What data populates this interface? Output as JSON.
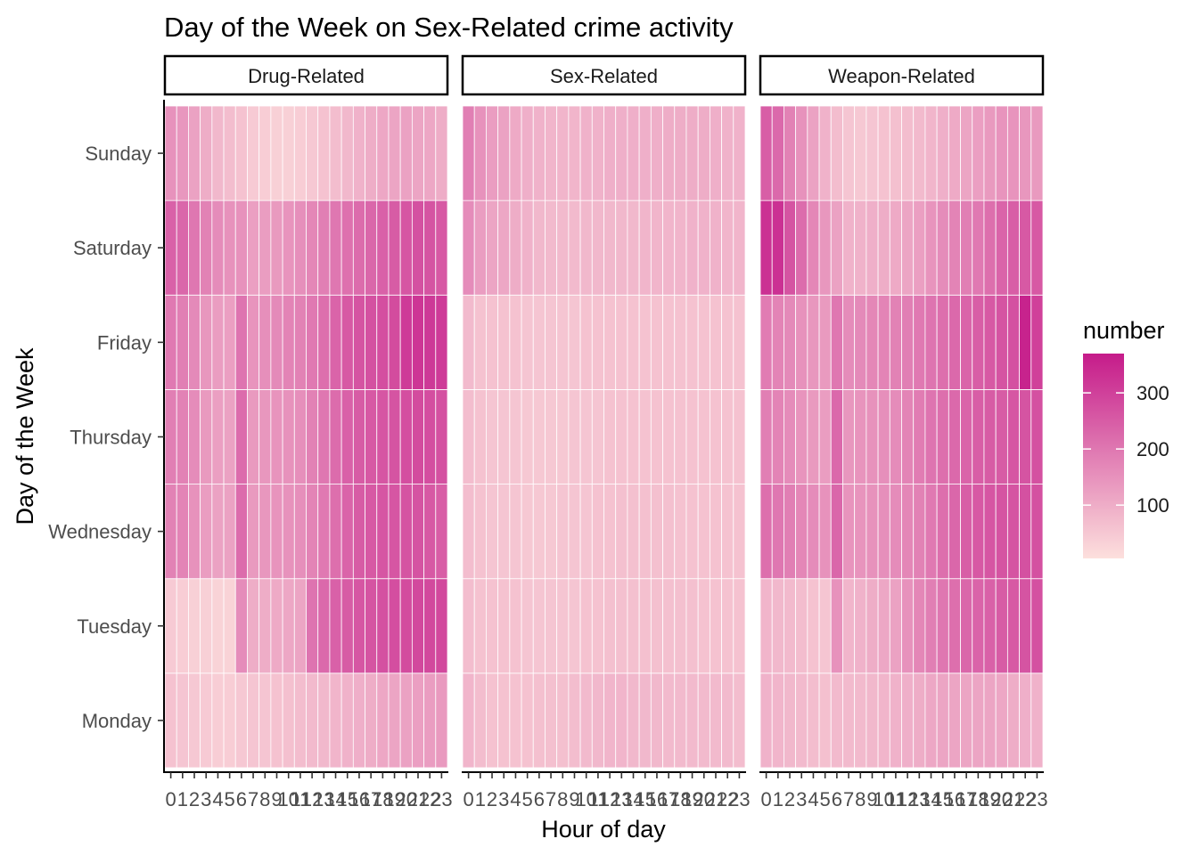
{
  "chart_data": {
    "type": "heatmap",
    "title": "Day of the Week on Sex-Related crime activity",
    "xlabel": "Hour of day",
    "ylabel": "Day of the Week",
    "x": [
      "0",
      "1",
      "2",
      "3",
      "4",
      "5",
      "6",
      "7",
      "8",
      "9",
      "10",
      "11",
      "12",
      "13",
      "14",
      "15",
      "16",
      "17",
      "18",
      "19",
      "20",
      "21",
      "22",
      "23"
    ],
    "y": [
      "Monday",
      "Tuesday",
      "Wednesday",
      "Thursday",
      "Friday",
      "Saturday",
      "Sunday"
    ],
    "legend": {
      "title": "number",
      "breaks": [
        100,
        200,
        300
      ],
      "range": [
        5,
        370
      ],
      "low_color": "#fde0dd",
      "high_color": "#c51b8a",
      "position": "right"
    },
    "facets": [
      {
        "name": "Drug-Related",
        "values": [
          [
            60,
            55,
            50,
            45,
            40,
            40,
            50,
            55,
            55,
            60,
            65,
            70,
            75,
            80,
            85,
            90,
            95,
            100,
            110,
            115,
            120,
            125,
            130,
            135
          ],
          [
            45,
            40,
            35,
            35,
            30,
            30,
            160,
            100,
            100,
            105,
            110,
            115,
            205,
            225,
            240,
            250,
            260,
            265,
            270,
            275,
            280,
            285,
            285,
            285
          ],
          [
            180,
            175,
            150,
            130,
            120,
            120,
            220,
            135,
            140,
            145,
            150,
            155,
            175,
            195,
            215,
            235,
            250,
            255,
            260,
            260,
            265,
            265,
            255,
            245
          ],
          [
            185,
            180,
            160,
            135,
            125,
            120,
            220,
            135,
            140,
            145,
            150,
            155,
            180,
            200,
            220,
            240,
            250,
            255,
            260,
            265,
            275,
            280,
            275,
            270
          ],
          [
            195,
            185,
            165,
            140,
            130,
            125,
            205,
            145,
            155,
            165,
            175,
            180,
            195,
            215,
            235,
            255,
            265,
            270,
            275,
            280,
            310,
            320,
            315,
            310
          ],
          [
            240,
            230,
            200,
            180,
            160,
            150,
            150,
            125,
            130,
            135,
            145,
            155,
            170,
            185,
            200,
            210,
            220,
            230,
            240,
            250,
            260,
            270,
            265,
            255
          ],
          [
            150,
            140,
            120,
            100,
            80,
            70,
            60,
            45,
            40,
            35,
            35,
            40,
            50,
            60,
            70,
            80,
            90,
            100,
            110,
            115,
            120,
            115,
            110,
            100
          ]
        ]
      },
      {
        "name": "Sex-Related",
        "values": [
          [
            85,
            70,
            60,
            60,
            60,
            60,
            65,
            65,
            65,
            70,
            75,
            80,
            85,
            85,
            80,
            80,
            80,
            75,
            75,
            75,
            75,
            75,
            75,
            70
          ],
          [
            70,
            60,
            60,
            60,
            60,
            55,
            55,
            55,
            55,
            55,
            60,
            60,
            65,
            65,
            65,
            65,
            65,
            65,
            65,
            65,
            60,
            60,
            60,
            60
          ],
          [
            70,
            60,
            55,
            55,
            55,
            50,
            50,
            50,
            55,
            55,
            55,
            60,
            60,
            65,
            65,
            65,
            65,
            65,
            60,
            60,
            60,
            60,
            60,
            60
          ],
          [
            70,
            60,
            55,
            55,
            55,
            50,
            50,
            50,
            50,
            55,
            55,
            55,
            60,
            60,
            60,
            60,
            60,
            60,
            60,
            60,
            60,
            60,
            60,
            60
          ],
          [
            75,
            60,
            60,
            60,
            60,
            55,
            55,
            55,
            55,
            55,
            60,
            60,
            60,
            60,
            60,
            60,
            60,
            60,
            60,
            60,
            60,
            60,
            60,
            60
          ],
          [
            160,
            130,
            115,
            110,
            100,
            90,
            80,
            75,
            75,
            75,
            80,
            80,
            80,
            80,
            80,
            85,
            85,
            85,
            85,
            90,
            90,
            90,
            85,
            85
          ],
          [
            185,
            150,
            130,
            120,
            105,
            95,
            90,
            85,
            85,
            85,
            90,
            90,
            95,
            95,
            95,
            95,
            95,
            100,
            100,
            100,
            100,
            95,
            90,
            90
          ]
        ]
      },
      {
        "name": "Weapon-Related",
        "values": [
          [
            90,
            85,
            80,
            75,
            70,
            65,
            75,
            75,
            75,
            80,
            85,
            90,
            95,
            100,
            110,
            115,
            115,
            115,
            115,
            115,
            110,
            100,
            95,
            90
          ],
          [
            85,
            80,
            75,
            70,
            60,
            55,
            150,
            85,
            90,
            100,
            110,
            120,
            150,
            170,
            185,
            200,
            215,
            230,
            235,
            240,
            250,
            255,
            265,
            270
          ],
          [
            215,
            200,
            185,
            170,
            160,
            150,
            230,
            145,
            145,
            150,
            155,
            160,
            170,
            180,
            195,
            215,
            230,
            245,
            255,
            260,
            265,
            265,
            270,
            270
          ],
          [
            185,
            175,
            160,
            145,
            135,
            130,
            225,
            140,
            145,
            150,
            155,
            160,
            175,
            190,
            205,
            215,
            225,
            235,
            245,
            250,
            250,
            260,
            265,
            270
          ],
          [
            190,
            175,
            165,
            150,
            140,
            135,
            200,
            160,
            165,
            170,
            175,
            180,
            185,
            195,
            205,
            215,
            225,
            235,
            245,
            255,
            265,
            270,
            355,
            300
          ],
          [
            330,
            330,
            265,
            220,
            170,
            140,
            120,
            90,
            90,
            95,
            100,
            105,
            115,
            125,
            145,
            160,
            175,
            185,
            195,
            215,
            235,
            245,
            255,
            255
          ],
          [
            245,
            225,
            180,
            150,
            120,
            90,
            70,
            55,
            50,
            55,
            60,
            65,
            70,
            75,
            85,
            95,
            105,
            115,
            125,
            135,
            145,
            145,
            140,
            135
          ]
        ]
      }
    ]
  }
}
